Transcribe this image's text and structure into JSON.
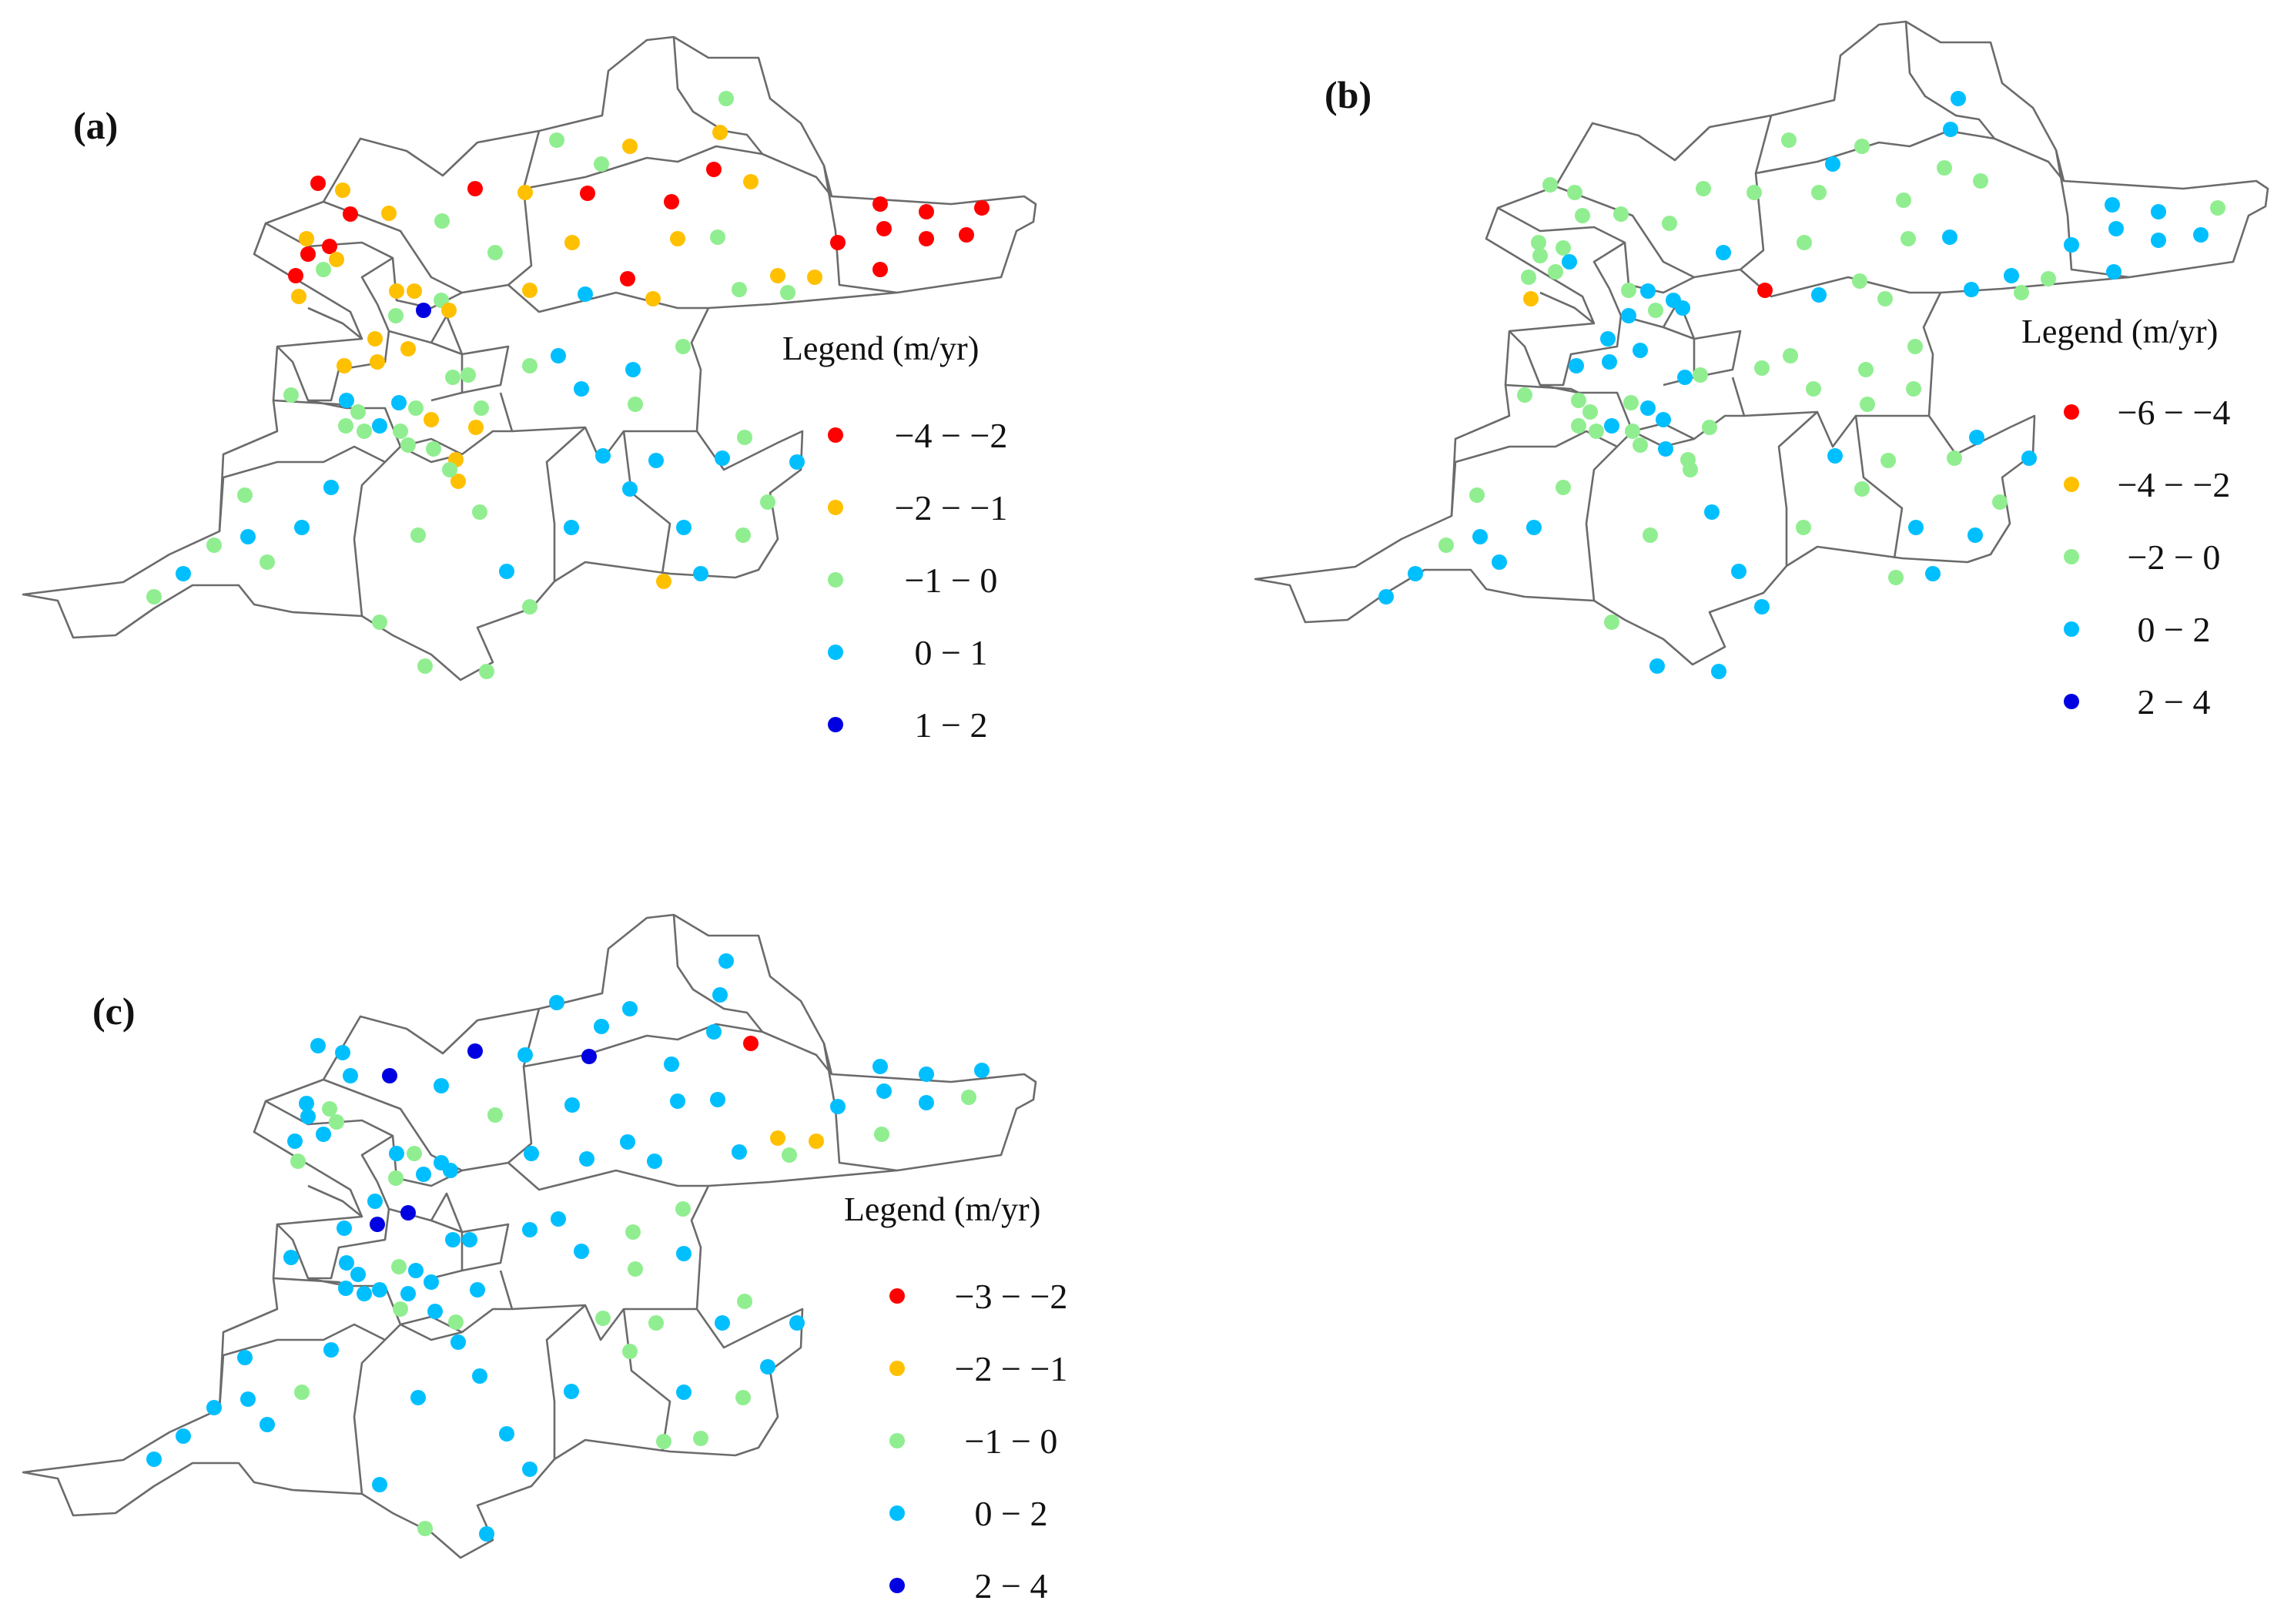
{
  "panels": [
    {
      "id": "a",
      "label": "(a)",
      "legend_title": "Legend (m/yr)",
      "legend": [
        {
          "label": "−4 − −2",
          "color": "#ff0000"
        },
        {
          "label": "−2 − −1",
          "color": "#ffc000"
        },
        {
          "label": "−1 − 0",
          "color": "#90ee90"
        },
        {
          "label": "0 − 1",
          "color": "#00bfff"
        },
        {
          "label": "1 − 2",
          "color": "#0000e0"
        }
      ]
    },
    {
      "id": "b",
      "label": "(b)",
      "legend_title": "Legend (m/yr)",
      "legend": [
        {
          "label": "−6 − −4",
          "color": "#ff0000"
        },
        {
          "label": "−4 − −2",
          "color": "#ffc000"
        },
        {
          "label": "−2 − 0",
          "color": "#90ee90"
        },
        {
          "label": "0 − 2",
          "color": "#00bfff"
        },
        {
          "label": "2 − 4",
          "color": "#0000e0"
        }
      ]
    },
    {
      "id": "c",
      "label": "(c)",
      "legend_title": "Legend (m/yr)",
      "legend": [
        {
          "label": "−3 − −2",
          "color": "#ff0000"
        },
        {
          "label": "−2 − −1",
          "color": "#ffc000"
        },
        {
          "label": "−1 − 0",
          "color": "#90ee90"
        },
        {
          "label": "0 − 2",
          "color": "#00bfff"
        },
        {
          "label": "2 − 4",
          "color": "#0000e0"
        }
      ]
    }
  ]
}
